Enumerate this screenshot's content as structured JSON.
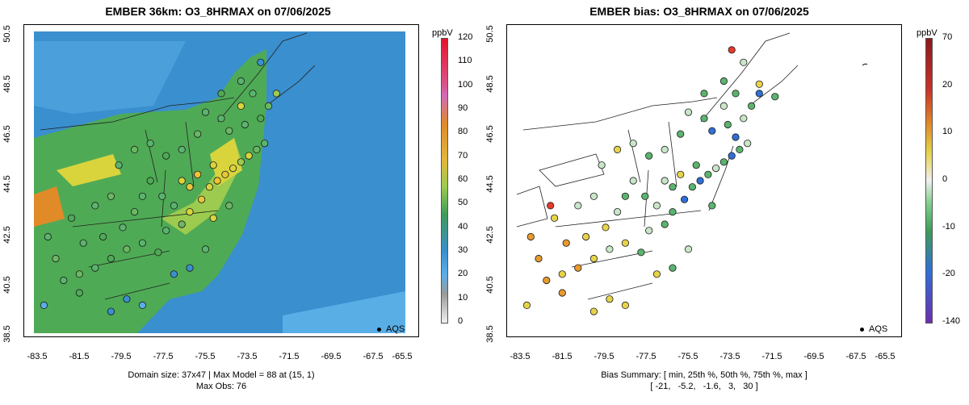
{
  "left_panel": {
    "title": "EMBER 36km: O3_8HRMAX on 07/06/2025",
    "unit": "ppbV",
    "colorbar_labels": [
      "120",
      "110",
      "100",
      "90",
      "80",
      "70",
      "60",
      "50",
      "40",
      "30",
      "20",
      "10",
      "0"
    ],
    "y_ticks": [
      "50.5",
      "48.5",
      "46.5",
      "44.5",
      "42.5",
      "40.5",
      "38.5"
    ],
    "x_ticks": [
      "-83.5",
      "-81.5",
      "-79.5",
      "-77.5",
      "-75.5",
      "-73.5",
      "-71.5",
      "-69.5",
      "-67.5",
      "-65.5"
    ],
    "caption_line1": "Domain size: 37x47 | Max Model = 88 at (15, 1)",
    "caption_line2": "Max Obs: 76",
    "legend_label": "AQS"
  },
  "right_panel": {
    "title": "EMBER bias: O3_8HRMAX on 07/06/2025",
    "unit": "ppbV",
    "colorbar_labels": [
      "70",
      "20",
      "10",
      "0",
      "-10",
      "-20",
      "-140"
    ],
    "y_ticks": [
      "50.5",
      "48.5",
      "46.5",
      "44.5",
      "42.5",
      "40.5",
      "38.5"
    ],
    "x_ticks": [
      "-83.5",
      "-81.5",
      "-79.5",
      "-77.5",
      "-75.5",
      "-73.5",
      "-71.5",
      "-69.5",
      "-67.5",
      "-65.5"
    ],
    "caption_line1": "Bias Summary: [ min, 25th %, 50th %, 75th %, max ]",
    "caption_line2": "[ -21,   -5.2,   -1.6,   3,   30 ]",
    "legend_label": "AQS"
  },
  "colors": {
    "ocean": "#3a8fcf",
    "ocean_light": "#5aaee6",
    "land_green": "#4faa55",
    "land_yellow": "#d9d43c",
    "land_orange": "#e08a28",
    "obs_green": "#5ab46e",
    "obs_yellow": "#e6d34a",
    "obs_orange": "#e89a2e",
    "obs_blue": "#2f6fd6",
    "obs_red": "#e33b2b",
    "obs_light": "#c9e6c8"
  },
  "stations_left": [
    [
      0.1,
      0.82,
      "#5ab46e"
    ],
    [
      0.14,
      0.8,
      "#6bb863"
    ],
    [
      0.18,
      0.78,
      "#5ab46e"
    ],
    [
      0.22,
      0.75,
      "#4faa55"
    ],
    [
      0.26,
      0.72,
      "#6bb863"
    ],
    [
      0.3,
      0.7,
      "#5ab46e"
    ],
    [
      0.34,
      0.73,
      "#4faa55"
    ],
    [
      0.36,
      0.66,
      "#5ab46e"
    ],
    [
      0.4,
      0.64,
      "#6bb863"
    ],
    [
      0.38,
      0.58,
      "#5ab46e"
    ],
    [
      0.42,
      0.6,
      "#d9d43c"
    ],
    [
      0.45,
      0.56,
      "#e6c73a"
    ],
    [
      0.47,
      0.52,
      "#d9d43c"
    ],
    [
      0.49,
      0.5,
      "#f0c331"
    ],
    [
      0.51,
      0.48,
      "#e6c73a"
    ],
    [
      0.53,
      0.46,
      "#d9d43c"
    ],
    [
      0.55,
      0.44,
      "#9ccb4f"
    ],
    [
      0.57,
      0.42,
      "#d9d43c"
    ],
    [
      0.59,
      0.4,
      "#6bb863"
    ],
    [
      0.61,
      0.38,
      "#5ab46e"
    ],
    [
      0.48,
      0.45,
      "#d9d43c"
    ],
    [
      0.44,
      0.48,
      "#f0c331"
    ],
    [
      0.42,
      0.52,
      "#e6c73a"
    ],
    [
      0.4,
      0.5,
      "#d9d43c"
    ],
    [
      0.35,
      0.55,
      "#5ab46e"
    ],
    [
      0.32,
      0.5,
      "#4faa55"
    ],
    [
      0.3,
      0.55,
      "#5ab46e"
    ],
    [
      0.28,
      0.6,
      "#6bb863"
    ],
    [
      0.25,
      0.65,
      "#5ab46e"
    ],
    [
      0.2,
      0.68,
      "#4faa55"
    ],
    [
      0.15,
      0.7,
      "#5ab46e"
    ],
    [
      0.08,
      0.75,
      "#6bb863"
    ],
    [
      0.06,
      0.68,
      "#5ab46e"
    ],
    [
      0.12,
      0.62,
      "#4faa55"
    ],
    [
      0.18,
      0.58,
      "#5ab46e"
    ],
    [
      0.22,
      0.55,
      "#6bb863"
    ],
    [
      0.5,
      0.3,
      "#5ab46e"
    ],
    [
      0.52,
      0.34,
      "#6bb863"
    ],
    [
      0.56,
      0.32,
      "#5ab46e"
    ],
    [
      0.6,
      0.3,
      "#4faa55"
    ],
    [
      0.62,
      0.26,
      "#6bb863"
    ],
    [
      0.55,
      0.26,
      "#d9d43c"
    ],
    [
      0.58,
      0.22,
      "#5ab46e"
    ],
    [
      0.64,
      0.22,
      "#9ccb4f"
    ],
    [
      0.6,
      0.12,
      "#3a8fcf"
    ],
    [
      0.55,
      0.18,
      "#5ab46e"
    ],
    [
      0.5,
      0.22,
      "#4faa55"
    ],
    [
      0.46,
      0.28,
      "#5ab46e"
    ],
    [
      0.44,
      0.35,
      "#6bb863"
    ],
    [
      0.4,
      0.4,
      "#5ab46e"
    ],
    [
      0.36,
      0.42,
      "#4faa55"
    ],
    [
      0.32,
      0.38,
      "#5ab46e"
    ],
    [
      0.28,
      0.4,
      "#6bb863"
    ],
    [
      0.24,
      0.45,
      "#5ab46e"
    ],
    [
      0.26,
      0.88,
      "#3a8fcf"
    ],
    [
      0.3,
      0.9,
      "#5aaee6"
    ],
    [
      0.22,
      0.92,
      "#3a8fcf"
    ],
    [
      0.14,
      0.86,
      "#4faa55"
    ],
    [
      0.05,
      0.9,
      "#5aaee6"
    ],
    [
      0.42,
      0.78,
      "#3a8fcf"
    ],
    [
      0.46,
      0.72,
      "#5ab46e"
    ],
    [
      0.38,
      0.8,
      "#3a8fcf"
    ],
    [
      0.48,
      0.62,
      "#d9d43c"
    ],
    [
      0.52,
      0.58,
      "#6bb863"
    ]
  ],
  "stations_right": [
    [
      0.1,
      0.82,
      "#e89a2e"
    ],
    [
      0.14,
      0.8,
      "#e6d34a"
    ],
    [
      0.18,
      0.78,
      "#e89a2e"
    ],
    [
      0.22,
      0.75,
      "#e6d34a"
    ],
    [
      0.26,
      0.72,
      "#c9e6c8"
    ],
    [
      0.3,
      0.7,
      "#e6d34a"
    ],
    [
      0.34,
      0.73,
      "#5ab46e"
    ],
    [
      0.36,
      0.66,
      "#c9e6c8"
    ],
    [
      0.4,
      0.64,
      "#5ab46e"
    ],
    [
      0.38,
      0.58,
      "#c9e6c8"
    ],
    [
      0.42,
      0.6,
      "#5ab46e"
    ],
    [
      0.45,
      0.56,
      "#2f6fd6"
    ],
    [
      0.47,
      0.52,
      "#5ab46e"
    ],
    [
      0.49,
      0.5,
      "#2f6fd6"
    ],
    [
      0.51,
      0.48,
      "#5ab46e"
    ],
    [
      0.53,
      0.46,
      "#c9e6c8"
    ],
    [
      0.55,
      0.44,
      "#5ab46e"
    ],
    [
      0.57,
      0.42,
      "#2f6fd6"
    ],
    [
      0.59,
      0.4,
      "#5ab46e"
    ],
    [
      0.61,
      0.38,
      "#c9e6c8"
    ],
    [
      0.48,
      0.45,
      "#5ab46e"
    ],
    [
      0.44,
      0.48,
      "#e6d34a"
    ],
    [
      0.42,
      0.52,
      "#5ab46e"
    ],
    [
      0.4,
      0.5,
      "#c9e6c8"
    ],
    [
      0.35,
      0.55,
      "#5ab46e"
    ],
    [
      0.32,
      0.5,
      "#c9e6c8"
    ],
    [
      0.3,
      0.55,
      "#5ab46e"
    ],
    [
      0.28,
      0.6,
      "#c9e6c8"
    ],
    [
      0.25,
      0.65,
      "#e6d34a"
    ],
    [
      0.2,
      0.68,
      "#e6d34a"
    ],
    [
      0.15,
      0.7,
      "#e89a2e"
    ],
    [
      0.08,
      0.75,
      "#e89a2e"
    ],
    [
      0.06,
      0.68,
      "#e89a2e"
    ],
    [
      0.12,
      0.62,
      "#e6d34a"
    ],
    [
      0.18,
      0.58,
      "#c9e6c8"
    ],
    [
      0.22,
      0.55,
      "#c9e6c8"
    ],
    [
      0.5,
      0.3,
      "#5ab46e"
    ],
    [
      0.52,
      0.34,
      "#2f6fd6"
    ],
    [
      0.56,
      0.32,
      "#5ab46e"
    ],
    [
      0.6,
      0.3,
      "#c9e6c8"
    ],
    [
      0.62,
      0.26,
      "#5ab46e"
    ],
    [
      0.55,
      0.26,
      "#c9e6c8"
    ],
    [
      0.58,
      0.22,
      "#5ab46e"
    ],
    [
      0.64,
      0.22,
      "#2f6fd6"
    ],
    [
      0.6,
      0.12,
      "#c9e6c8"
    ],
    [
      0.55,
      0.18,
      "#5ab46e"
    ],
    [
      0.5,
      0.22,
      "#5ab46e"
    ],
    [
      0.46,
      0.28,
      "#c9e6c8"
    ],
    [
      0.44,
      0.35,
      "#5ab46e"
    ],
    [
      0.4,
      0.4,
      "#c9e6c8"
    ],
    [
      0.36,
      0.42,
      "#5ab46e"
    ],
    [
      0.32,
      0.38,
      "#c9e6c8"
    ],
    [
      0.28,
      0.4,
      "#e6d34a"
    ],
    [
      0.24,
      0.45,
      "#c9e6c8"
    ],
    [
      0.26,
      0.88,
      "#e6d34a"
    ],
    [
      0.3,
      0.9,
      "#e6d34a"
    ],
    [
      0.22,
      0.92,
      "#e6d34a"
    ],
    [
      0.14,
      0.86,
      "#e89a2e"
    ],
    [
      0.05,
      0.9,
      "#e6d34a"
    ],
    [
      0.42,
      0.78,
      "#5ab46e"
    ],
    [
      0.46,
      0.72,
      "#c9e6c8"
    ],
    [
      0.38,
      0.8,
      "#e6d34a"
    ],
    [
      0.11,
      0.58,
      "#e33b2b"
    ],
    [
      0.52,
      0.58,
      "#5ab46e"
    ],
    [
      0.57,
      0.08,
      "#e33b2b"
    ],
    [
      0.64,
      0.19,
      "#e6d34a"
    ],
    [
      0.68,
      0.23,
      "#5ab46e"
    ],
    [
      0.58,
      0.36,
      "#2f6fd6"
    ]
  ]
}
